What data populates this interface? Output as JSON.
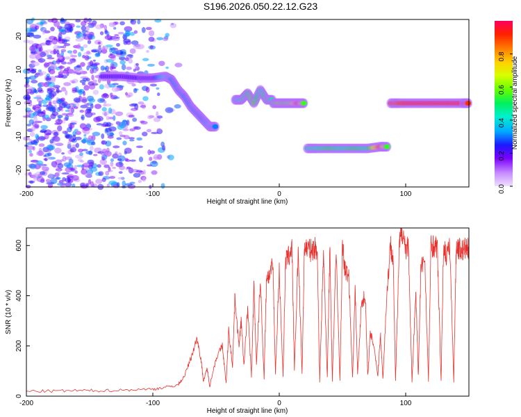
{
  "title": "S196.2026.050.22.12.G23",
  "colors": {
    "snr_line": "#e8302c",
    "axis": "#000000",
    "background": "#ffffff"
  },
  "chart_data": [
    {
      "type": "heatmap",
      "xlabel": "Height of straight line (km)",
      "ylabel": "Frequency (Hz)",
      "xlim": [
        -200,
        150
      ],
      "ylim": [
        -25,
        25
      ],
      "xticks": [
        -200,
        -100,
        0,
        100
      ],
      "yticks": [
        20,
        10,
        0,
        -10,
        -20
      ],
      "colorbar": {
        "label": "Normalized spectral amplitude",
        "range": [
          0,
          1
        ],
        "ticks": [
          0.0,
          0.2,
          0.4,
          0.6,
          0.8
        ],
        "colormap": "rainbow"
      },
      "tracks": [
        {
          "x": [
            -140,
            -125,
            -110,
            -100,
            -90,
            -85,
            -80,
            -75,
            -70,
            -65,
            -60,
            -55,
            -50
          ],
          "y": [
            8,
            8,
            7.5,
            7.5,
            8,
            7,
            4,
            2,
            -1,
            -3,
            -5,
            -7,
            -7
          ],
          "amplitude": [
            0.2,
            0.2,
            0.2,
            0.2,
            0.4,
            0.3,
            0.3,
            0.3,
            0.3,
            0.3,
            0.3,
            0.35,
            0.3
          ]
        },
        {
          "x": [
            -35,
            -30,
            -25,
            -20,
            -15,
            -10,
            -5
          ],
          "y": [
            1,
            1,
            3,
            0,
            4,
            1,
            1
          ],
          "amplitude": [
            0.4,
            0.45,
            0.5,
            0.55,
            0.45,
            0.5,
            0.45
          ]
        },
        {
          "x": [
            -5,
            0,
            5,
            10,
            15,
            20
          ],
          "y": [
            0,
            0,
            0,
            0,
            0,
            0
          ],
          "amplitude": [
            0.5,
            0.6,
            0.55,
            0.6,
            0.95,
            0.5
          ]
        },
        {
          "x": [
            22,
            30,
            40,
            50,
            60,
            70,
            80,
            86
          ],
          "y": [
            -13.5,
            -13.5,
            -13.5,
            -13.5,
            -13.5,
            -13.5,
            -13,
            -13
          ],
          "amplitude": [
            0.45,
            0.45,
            0.5,
            0.45,
            0.5,
            0.45,
            0.9,
            0.5
          ]
        },
        {
          "x": [
            88,
            95,
            105,
            115,
            125,
            135,
            145,
            150
          ],
          "y": [
            0,
            0,
            0,
            0,
            0,
            0,
            0,
            0
          ],
          "amplitude": [
            0.9,
            0.9,
            0.95,
            0.95,
            0.95,
            0.95,
            0.95,
            0.9
          ]
        }
      ],
      "noise_region": {
        "x_range": [
          -200,
          -75
        ],
        "y_range": [
          -25,
          25
        ]
      }
    },
    {
      "type": "line",
      "xlabel": "Height of straight line (km)",
      "ylabel": "SNR (10 * v/v)",
      "xlim": [
        -200,
        150
      ],
      "ylim": [
        0,
        670
      ],
      "xticks": [
        -200,
        -100,
        0,
        100
      ],
      "yticks": [
        0,
        200,
        400,
        600
      ],
      "series": [
        {
          "x": [
            -200,
            -180,
            -160,
            -140,
            -120,
            -100,
            -90,
            -80,
            -75,
            -70,
            -65,
            -62,
            -60,
            -57,
            -55,
            -50,
            -45,
            -42,
            -40,
            -37,
            -35,
            -32,
            -30,
            -28,
            -25,
            -22,
            -20,
            -18,
            -15,
            -12,
            -10,
            -8,
            -5,
            -3,
            0,
            3,
            5,
            8,
            10,
            12,
            15,
            18,
            20,
            22,
            25,
            28,
            30,
            32,
            35,
            38,
            40,
            42,
            45,
            48,
            50,
            52,
            55,
            58,
            60,
            62,
            65,
            68,
            70,
            72,
            75,
            78,
            80,
            82,
            85,
            88,
            90,
            92,
            95,
            97,
            100,
            102,
            105,
            108,
            110,
            112,
            115,
            118,
            120,
            122,
            125,
            128,
            130,
            132,
            135,
            138,
            140,
            142,
            145,
            148,
            150
          ],
          "y": [
            20,
            20,
            22,
            22,
            25,
            28,
            35,
            45,
            80,
            150,
            230,
            150,
            60,
            110,
            40,
            150,
            200,
            50,
            260,
            120,
            400,
            200,
            300,
            120,
            350,
            80,
            440,
            120,
            460,
            70,
            480,
            480,
            520,
            90,
            500,
            80,
            540,
            560,
            600,
            100,
            580,
            90,
            600,
            590,
            580,
            590,
            590,
            60,
            580,
            70,
            590,
            60,
            580,
            60,
            600,
            500,
            480,
            70,
            420,
            90,
            370,
            400,
            80,
            250,
            200,
            80,
            250,
            70,
            400,
            600,
            560,
            60,
            600,
            670,
            590,
            600,
            60,
            420,
            80,
            500,
            560,
            60,
            600,
            600,
            590,
            60,
            600,
            560,
            590,
            60,
            600,
            590,
            580,
            590,
            580
          ]
        }
      ]
    }
  ]
}
